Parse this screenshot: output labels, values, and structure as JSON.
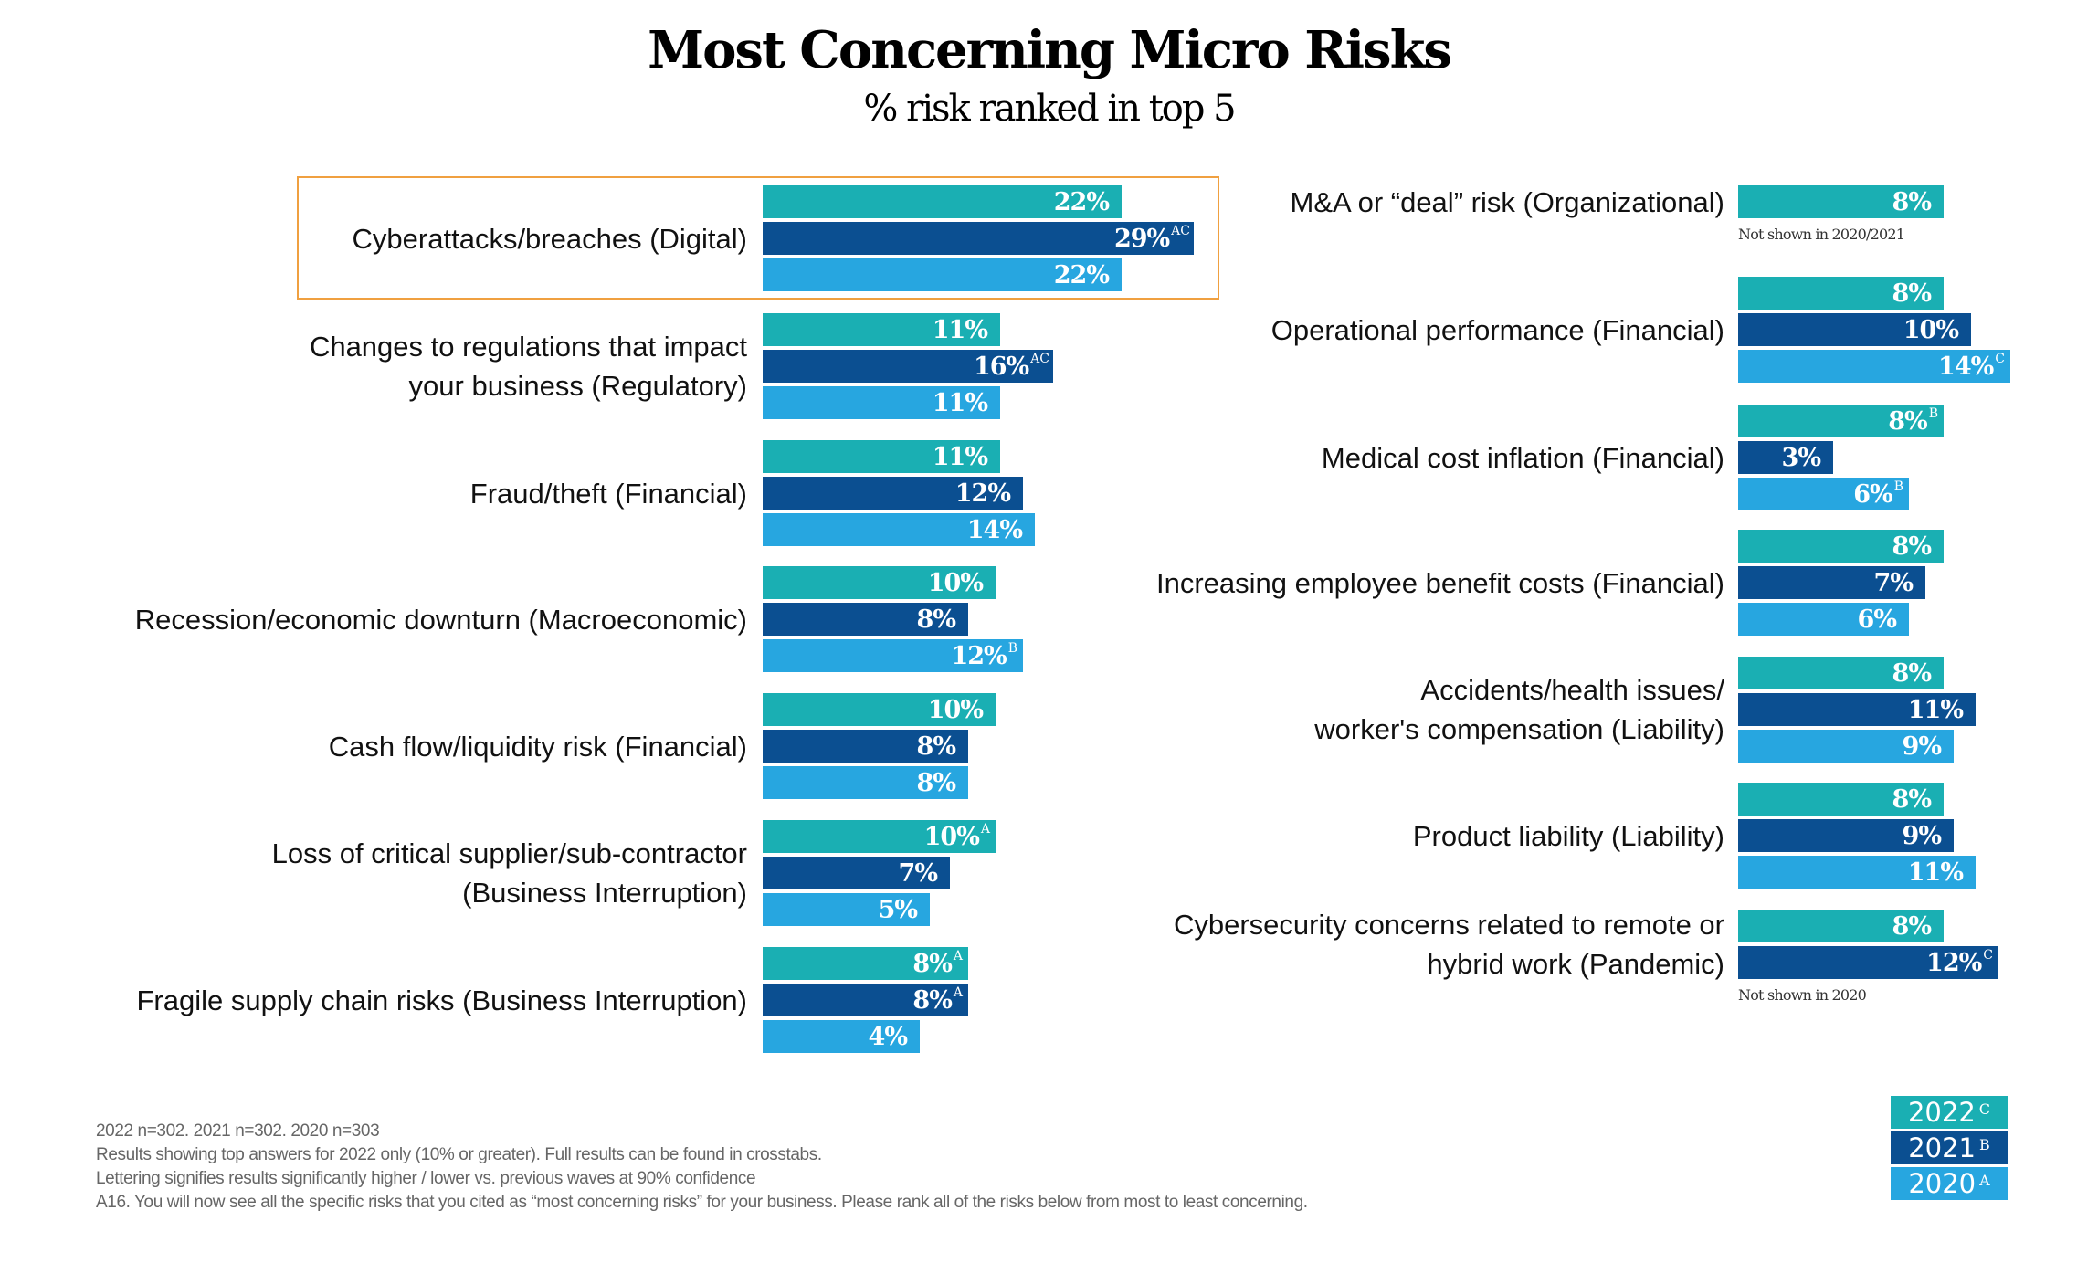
{
  "colors": {
    "2022": "#1aafb3",
    "2021": "#0b4f91",
    "2020": "#27a6e0",
    "highlight": "#f0a040"
  },
  "chart_data": {
    "type": "bar",
    "orientation": "horizontal",
    "title": "Most Concerning Micro Risks",
    "subtitle": "% risk ranked in top 5",
    "series_names": [
      "2022",
      "2021",
      "2020"
    ],
    "series_letters": [
      "C",
      "B",
      "A"
    ],
    "unit": "%",
    "left_column": [
      {
        "label_lines": [
          "Cyberattacks/breaches (Digital)"
        ],
        "highlighted": true,
        "values": [
          22,
          29,
          22
        ],
        "sig": [
          "",
          "AC",
          ""
        ]
      },
      {
        "label_lines": [
          "Changes to regulations that impact",
          "your business (Regulatory)"
        ],
        "values": [
          11,
          16,
          11
        ],
        "sig": [
          "",
          "AC",
          ""
        ]
      },
      {
        "label_lines": [
          "Fraud/theft (Financial)"
        ],
        "values": [
          11,
          12,
          14
        ],
        "sig": [
          "",
          "",
          ""
        ]
      },
      {
        "label_lines": [
          "Recession/economic downturn (Macroeconomic)"
        ],
        "values": [
          10,
          8,
          12
        ],
        "sig": [
          "",
          "",
          "B"
        ]
      },
      {
        "label_lines": [
          "Cash flow/liquidity risk (Financial)"
        ],
        "values": [
          10,
          8,
          8
        ],
        "sig": [
          "",
          "",
          ""
        ]
      },
      {
        "label_lines": [
          "Loss of critical supplier/sub-contractor",
          "(Business Interruption)"
        ],
        "values": [
          10,
          7,
          5
        ],
        "sig": [
          "A",
          "",
          ""
        ]
      },
      {
        "label_lines": [
          "Fragile supply chain risks (Business Interruption)"
        ],
        "values": [
          8,
          8,
          4
        ],
        "sig": [
          "A",
          "A",
          ""
        ]
      }
    ],
    "right_column": [
      {
        "label_lines": [
          "M&A or “deal” risk (Organizational)"
        ],
        "values": [
          8,
          null,
          null
        ],
        "sig": [
          "",
          "",
          ""
        ],
        "note": "Not shown in 2020/2021"
      },
      {
        "label_lines": [
          "Operational performance (Financial)"
        ],
        "values": [
          8,
          10,
          14
        ],
        "sig": [
          "",
          "",
          "C"
        ]
      },
      {
        "label_lines": [
          "Medical cost inflation (Financial)"
        ],
        "values": [
          8,
          3,
          6
        ],
        "sig": [
          "B",
          "",
          "B"
        ]
      },
      {
        "label_lines": [
          "Increasing employee benefit costs (Financial)"
        ],
        "values": [
          8,
          7,
          6
        ],
        "sig": [
          "",
          "",
          ""
        ]
      },
      {
        "label_lines": [
          "Accidents/health issues/",
          "worker's compensation (Liability)"
        ],
        "values": [
          8,
          11,
          9
        ],
        "sig": [
          "",
          "",
          ""
        ]
      },
      {
        "label_lines": [
          "Product liability (Liability)"
        ],
        "values": [
          8,
          9,
          11
        ],
        "sig": [
          "",
          "",
          ""
        ]
      },
      {
        "label_lines": [
          "Cybersecurity concerns related to remote or",
          "hybrid work (Pandemic)"
        ],
        "values": [
          8,
          12,
          null
        ],
        "sig": [
          "",
          "C",
          ""
        ],
        "note": "Not shown in 2020"
      }
    ],
    "legend": [
      {
        "year": "2022",
        "letter": "C"
      },
      {
        "year": "2021",
        "letter": "B"
      },
      {
        "year": "2020",
        "letter": "A"
      }
    ],
    "legend_position": "bottom-right"
  },
  "footer": [
    "2022 n=302. 2021 n=302. 2020 n=303",
    "Results showing top answers for 2022 only (10% or greater). Full results can be found in crosstabs.",
    "Lettering signifies results significantly higher / lower vs. previous waves at 90% confidence",
    "A16. You will now see all the specific risks that you cited as “most concerning risks” for your business. Please rank all of the risks below from most to least concerning."
  ]
}
